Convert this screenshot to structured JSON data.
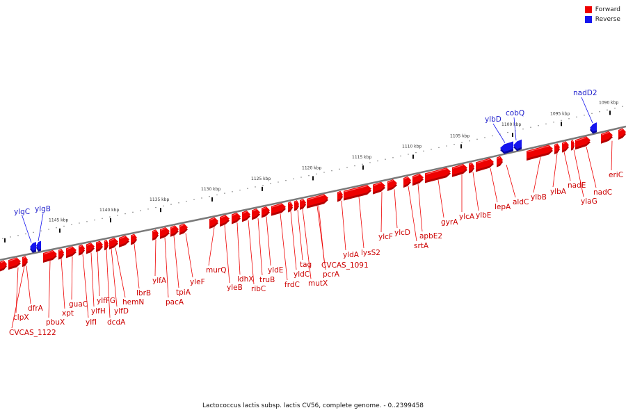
{
  "title": "Lactococcus lactis subsp. lactis CV56, complete genome. - 0..2399458",
  "colors": {
    "forward": "#ee0000",
    "reverse": "#1515ee",
    "forward_label": "#cc0000",
    "reverse_label": "#2020cc"
  },
  "legend": [
    {
      "label": "Forward",
      "color": "#ee0000"
    },
    {
      "label": "Reverse",
      "color": "#1515ee"
    }
  ],
  "ticks": [
    "1090 kbp",
    "1095 kbp",
    "1100 kbp",
    "1105 kbp",
    "1110 kbp",
    "1115 kbp",
    "1120 kbp",
    "1125 kbp",
    "1130 kbp",
    "1135 kbp",
    "1140 kbp",
    "1145 kbp"
  ],
  "forward_genes": [
    "clpX",
    "CVCAS_1122",
    "dfrA",
    "pbuX",
    "xpt",
    "guaC",
    "ylfI",
    "ylfH",
    "ylfFG",
    "dcdA",
    "ylfD",
    "hemN",
    "lbrB",
    "ylfA",
    "pacA",
    "tpiA",
    "yleF",
    "murQ",
    "yleB",
    "ldhX",
    "ribC",
    "truB",
    "yldE",
    "frdC",
    "yldC",
    "tag",
    "mutX",
    "pcrA",
    "CVCAS_1091",
    "yldA",
    "lysS2",
    "ylcF",
    "ylcD",
    "srtA",
    "apbE2",
    "gyrA",
    "ylcA",
    "ylbE",
    "lepA",
    "aldC",
    "ylbB",
    "ylbA",
    "nadE",
    "ylaG",
    "nadC",
    "eriC"
  ],
  "reverse_genes": [
    "ylgC",
    "ylgB",
    "ylbD",
    "cobQ",
    "nadD2"
  ]
}
